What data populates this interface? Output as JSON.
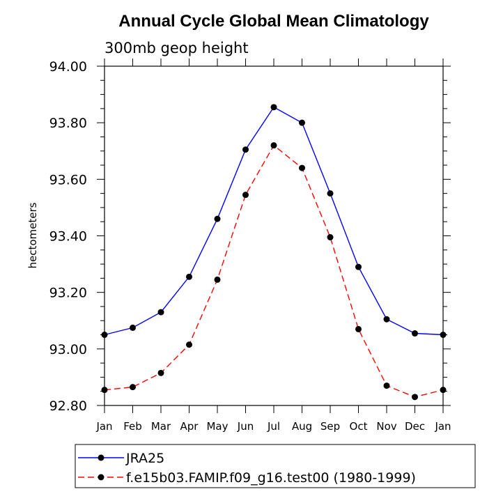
{
  "chart_data": {
    "type": "line",
    "title": "Annual Cycle Global Mean Climatology",
    "subtitle": "300mb geop height",
    "xlabel": "",
    "ylabel": "hectometers",
    "categories": [
      "Jan",
      "Feb",
      "Mar",
      "Apr",
      "May",
      "Jun",
      "Jul",
      "Aug",
      "Sep",
      "Oct",
      "Nov",
      "Dec",
      "Jan"
    ],
    "ylim": [
      92.8,
      94.0
    ],
    "yticks": [
      "92.80",
      "93.00",
      "93.20",
      "93.40",
      "93.60",
      "93.80",
      "94.00"
    ],
    "grid": false,
    "legend_position": "bottom",
    "series": [
      {
        "name": "JRA25",
        "color": "#0000ff",
        "dash": "solid",
        "values": [
          93.05,
          93.075,
          93.13,
          93.255,
          93.46,
          93.705,
          93.855,
          93.8,
          93.55,
          93.29,
          93.105,
          93.055,
          93.05
        ]
      },
      {
        "name": "f.e15b03.FAMIP.f09_g16.test00 (1980-1999)",
        "color": "#ff0000",
        "dash": "dashed",
        "values": [
          92.855,
          92.865,
          92.915,
          93.015,
          93.245,
          93.545,
          93.72,
          93.64,
          93.395,
          93.07,
          92.87,
          92.83,
          92.855
        ]
      }
    ]
  }
}
